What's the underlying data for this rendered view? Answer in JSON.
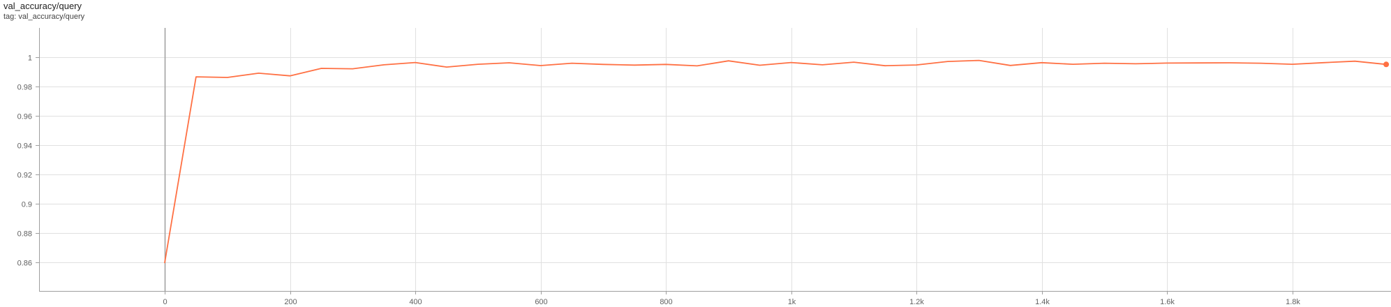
{
  "card": {
    "title": "val_accuracy/query",
    "tag": "tag: val_accuracy/query"
  },
  "colors": {
    "series": "#ff7043",
    "grid": "#e0e0e0",
    "zero_axis": "#9e9e9e",
    "tick_text": "#616161"
  },
  "chart_data": {
    "type": "line",
    "title": "val_accuracy/query",
    "xlabel": "",
    "ylabel": "",
    "grid": true,
    "xlim": [
      -200,
      1950
    ],
    "ylim": [
      0.84,
      1.02
    ],
    "x_ticks": [
      0,
      200,
      400,
      600,
      800,
      1000,
      1200,
      1400,
      1600,
      1800
    ],
    "x_tick_labels": [
      "0",
      "200",
      "400",
      "600",
      "800",
      "1k",
      "1.2k",
      "1.4k",
      "1.6k",
      "1.8k"
    ],
    "y_ticks": [
      0.86,
      0.88,
      0.9,
      0.92,
      0.94,
      0.96,
      0.98,
      1
    ],
    "y_tick_labels": [
      "0.86",
      "0.88",
      "0.9",
      "0.92",
      "0.94",
      "0.96",
      "0.98",
      "1"
    ],
    "series": [
      {
        "x": [
          0,
          50,
          100,
          150,
          200,
          250,
          300,
          350,
          400,
          450,
          500,
          550,
          600,
          650,
          700,
          750,
          800,
          850,
          900,
          950,
          1000,
          1050,
          1100,
          1150,
          1200,
          1250,
          1300,
          1350,
          1400,
          1450,
          1500,
          1550,
          1600,
          1650,
          1700,
          1750,
          1800,
          1850,
          1900,
          1950
        ],
        "y": [
          0.8598,
          0.9866,
          0.9862,
          0.9891,
          0.9873,
          0.9924,
          0.9921,
          0.9948,
          0.9964,
          0.9933,
          0.9952,
          0.9962,
          0.9943,
          0.9959,
          0.9951,
          0.9946,
          0.9951,
          0.9941,
          0.9975,
          0.9945,
          0.9964,
          0.9948,
          0.9966,
          0.9942,
          0.9947,
          0.9971,
          0.9978,
          0.9944,
          0.9963,
          0.9952,
          0.9959,
          0.9955,
          0.996,
          0.9961,
          0.9962,
          0.9959,
          0.9952,
          0.9963,
          0.9973,
          0.9951
        ]
      }
    ]
  }
}
